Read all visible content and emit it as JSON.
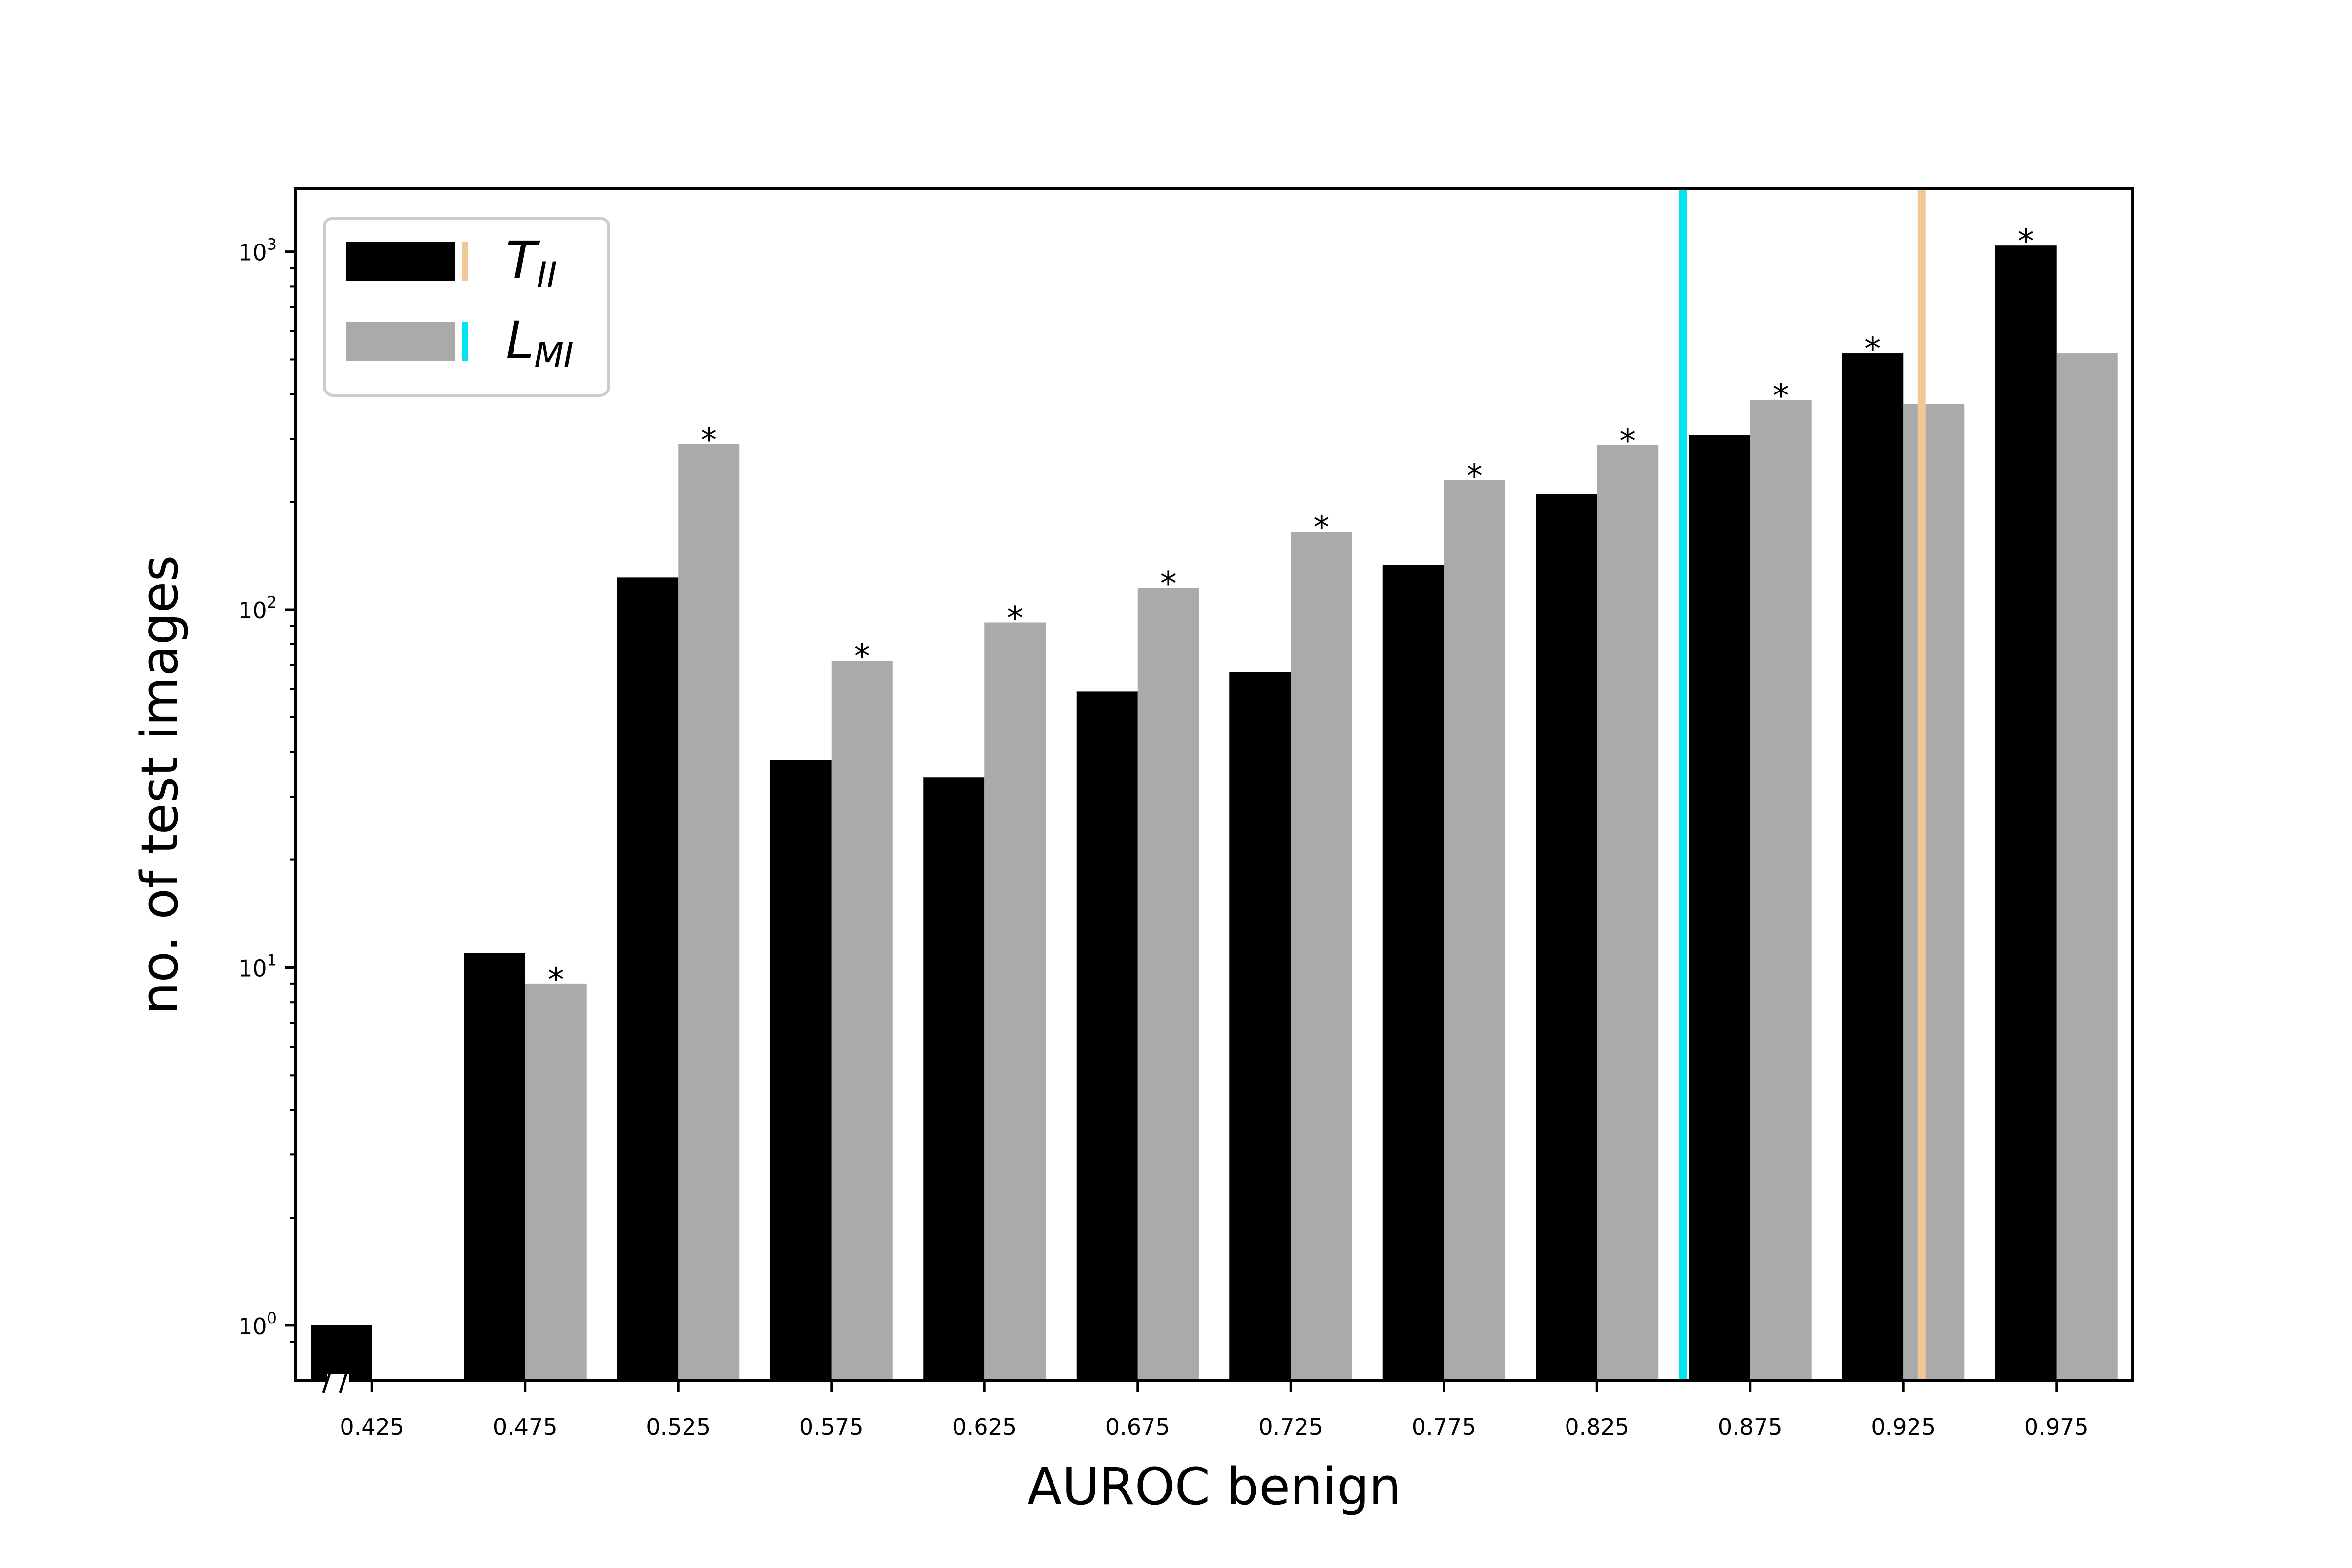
{
  "chart_data": {
    "type": "bar",
    "title": "",
    "xlabel": "AUROC benign",
    "ylabel": "no. of test images",
    "yscale": "log",
    "ylim": [
      0.7,
      1500
    ],
    "yticks": [
      {
        "value": 1,
        "base": "10",
        "exp": "0"
      },
      {
        "value": 10,
        "base": "10",
        "exp": "1"
      },
      {
        "value": 100,
        "base": "10",
        "exp": "2"
      },
      {
        "value": 1000,
        "base": "10",
        "exp": "3"
      }
    ],
    "xlim": [
      0.4,
      1.0
    ],
    "categories": [
      "0.425",
      "0.475",
      "0.525",
      "0.575",
      "0.625",
      "0.675",
      "0.725",
      "0.775",
      "0.825",
      "0.875",
      "0.925",
      "0.975"
    ],
    "series": [
      {
        "name": "T",
        "subscript": "II",
        "color": "#000000",
        "values": [
          1,
          11,
          123,
          38,
          34,
          59,
          67,
          133,
          210,
          308,
          520,
          1040
        ]
      },
      {
        "name": "L",
        "subscript": "MI",
        "color": "#aaaaaa",
        "values": [
          null,
          9,
          290,
          72,
          92,
          115,
          165,
          230,
          288,
          385,
          375,
          520
        ]
      }
    ],
    "significance_markers": {
      "symbol": "*",
      "marks": [
        {
          "category": "0.475",
          "series": 1
        },
        {
          "category": "0.525",
          "series": 1
        },
        {
          "category": "0.575",
          "series": 1
        },
        {
          "category": "0.625",
          "series": 1
        },
        {
          "category": "0.675",
          "series": 1
        },
        {
          "category": "0.725",
          "series": 1
        },
        {
          "category": "0.775",
          "series": 1
        },
        {
          "category": "0.825",
          "series": 1
        },
        {
          "category": "0.875",
          "series": 1
        },
        {
          "category": "0.925",
          "series": 0
        },
        {
          "category": "0.975",
          "series": 0
        }
      ]
    },
    "vertical_lines": [
      {
        "x": 0.853,
        "color": "#00e5ee",
        "legend_series": 1
      },
      {
        "x": 0.931,
        "color": "#f0c896",
        "legend_series": 0
      }
    ],
    "axis_break": true,
    "legend": {
      "position": "top-left"
    },
    "grid": false
  }
}
